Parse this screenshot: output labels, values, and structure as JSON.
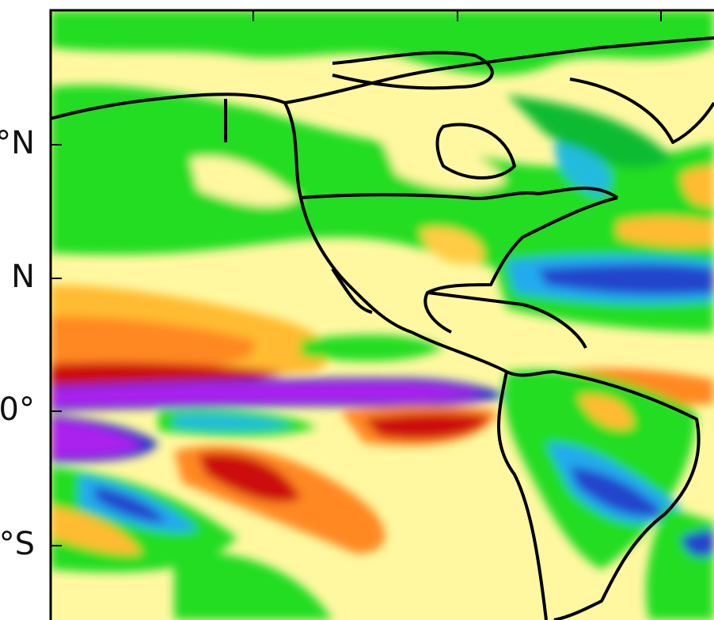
{
  "map": {
    "lat_labels": [
      "°N",
      "N",
      "0°",
      "°S"
    ]
  }
}
